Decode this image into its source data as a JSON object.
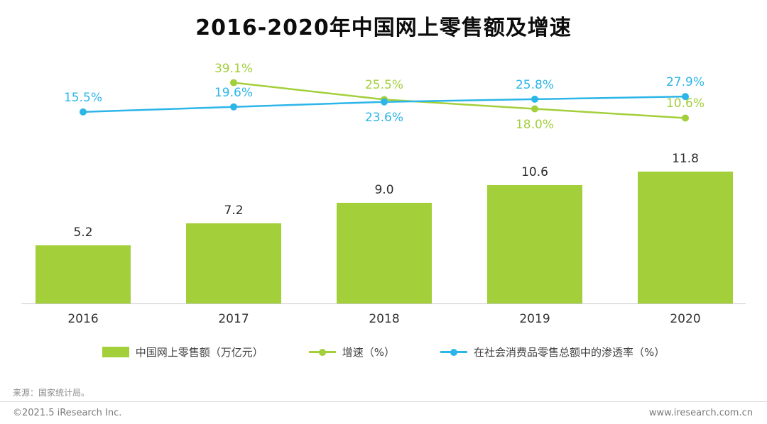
{
  "chart_data": {
    "type": "bar+line",
    "title": "2016-2020年中国网上零售额及增速",
    "xlabel": "",
    "ylabel": "",
    "grid": false,
    "y_axis_labels_visible": false,
    "legend_position": "bottom",
    "categories": [
      "2016",
      "2017",
      "2018",
      "2019",
      "2020"
    ],
    "bar_series": {
      "name": "中国网上零售额（万亿元）",
      "color": "#a3cf3b",
      "values": [
        5.2,
        7.2,
        9.0,
        10.6,
        11.8
      ],
      "labels": [
        "5.2",
        "7.2",
        "9.0",
        "10.6",
        "11.8"
      ]
    },
    "line_series": [
      {
        "name": "增速（%）",
        "color": "#a3cf3b",
        "values": [
          null,
          39.1,
          25.5,
          18.0,
          10.6
        ],
        "labels": [
          null,
          "39.1%",
          "25.5%",
          "18.0%",
          "10.6%"
        ],
        "label_positions": [
          null,
          "above",
          "above",
          "below",
          "above"
        ]
      },
      {
        "name": "在社会消费品零售总额中的渗透率（%）",
        "color": "#2cb5e8",
        "values": [
          15.5,
          19.6,
          23.6,
          25.8,
          27.9
        ],
        "labels": [
          "15.5%",
          "19.6%",
          "23.6%",
          "25.8%",
          "27.9%"
        ],
        "label_positions": [
          "above",
          "above",
          "below",
          "above",
          "above"
        ]
      }
    ]
  },
  "legend": [
    {
      "type": "bar",
      "label": "中国网上零售额（万亿元）",
      "color": "#a3cf3b"
    },
    {
      "type": "line",
      "label": "增速（%）",
      "color": "#a3cf3b"
    },
    {
      "type": "line",
      "label": "在社会消费品零售总额中的渗透率（%）",
      "color": "#2cb5e8"
    }
  ],
  "footer": {
    "source": "来源：国家统计局。",
    "copyright": "©2021.5 iResearch Inc.",
    "website": "www.iresearch.com.cn"
  }
}
